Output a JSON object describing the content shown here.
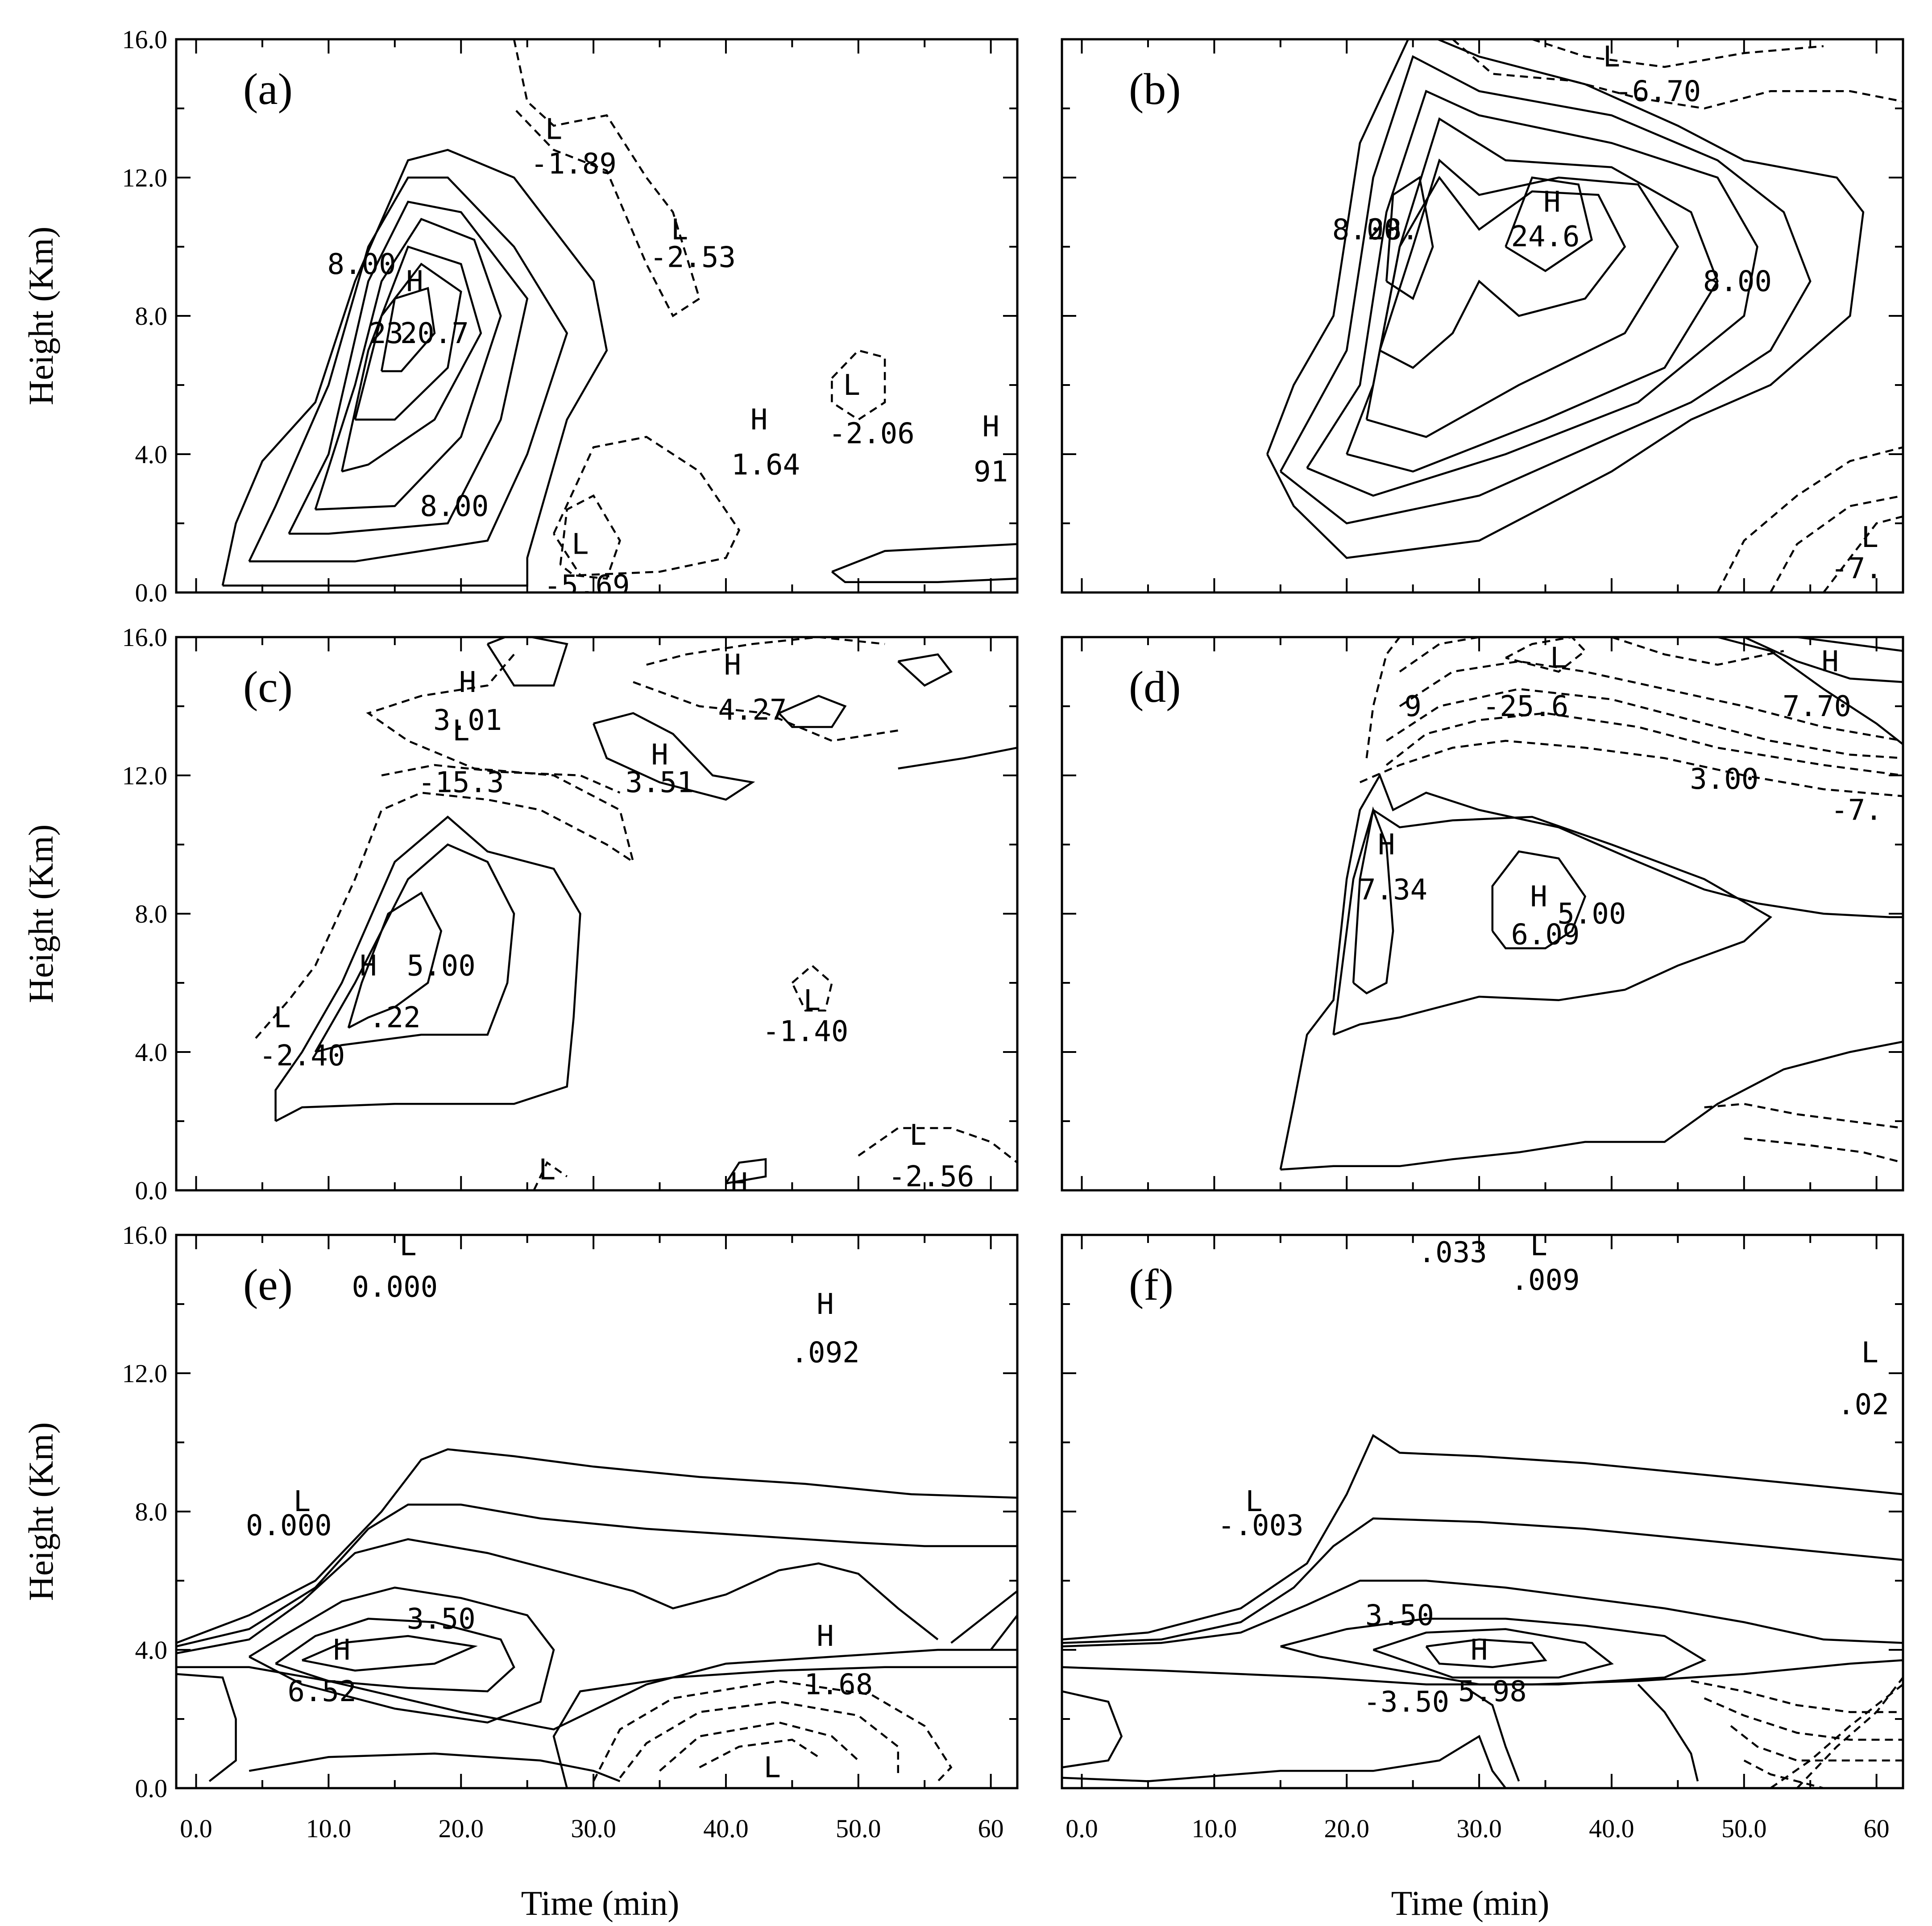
{
  "figure": {
    "x_tick_labels": [
      "0.0",
      "10.0",
      "20.0",
      "30.0",
      "40.0",
      "50.0",
      "60"
    ],
    "y_tick_labels": [
      "0.0",
      "4.0",
      "8.0",
      "12.0",
      "16.0"
    ],
    "ylabel": "Height (Km)",
    "xlabel": "Time (min)"
  },
  "chart_data": [
    {
      "type": "contour",
      "panel": "(a)",
      "xlim": [
        0,
        60
      ],
      "ylim": [
        0,
        16
      ],
      "xlabel": "",
      "ylabel": "Height (Km)",
      "extrema": [
        {
          "kind": "H",
          "x": 16.5,
          "y": 9.0
        },
        {
          "kind": "L",
          "x": 27.0,
          "y": 13.4
        },
        {
          "kind": "L",
          "x": 36.5,
          "y": 10.5
        },
        {
          "kind": "H",
          "x": 42.5,
          "y": 5.0
        },
        {
          "kind": "L",
          "x": 49.5,
          "y": 6.0
        },
        {
          "kind": "H",
          "x": 60.0,
          "y": 4.8
        },
        {
          "kind": "L",
          "x": 29.0,
          "y": 1.4
        }
      ],
      "contour_labels": [
        {
          "text": "8.00",
          "x": 12.5,
          "y": 9.5
        },
        {
          "text": "23.",
          "x": 15.0,
          "y": 7.5
        },
        {
          "text": "20.7",
          "x": 18.0,
          "y": 7.5
        },
        {
          "text": "-1.89",
          "x": 28.5,
          "y": 12.4
        },
        {
          "text": "-2.53",
          "x": 37.5,
          "y": 9.7
        },
        {
          "text": "8.00",
          "x": 19.5,
          "y": 2.5
        },
        {
          "text": "1.64",
          "x": 43.0,
          "y": 3.7
        },
        {
          "text": "-2.06",
          "x": 51.0,
          "y": 4.6
        },
        {
          "text": "91",
          "x": 60.0,
          "y": 3.5
        },
        {
          "text": "-5.69",
          "x": 29.5,
          "y": 0.2
        }
      ]
    },
    {
      "type": "contour",
      "panel": "(b)",
      "xlim": [
        0,
        60
      ],
      "ylim": [
        0,
        16
      ],
      "xlabel": "",
      "ylabel": "",
      "extrema": [
        {
          "kind": "L",
          "x": 40.0,
          "y": 15.5
        },
        {
          "kind": "H",
          "x": 35.5,
          "y": 11.3
        },
        {
          "kind": "L",
          "x": 59.5,
          "y": 1.6
        }
      ],
      "contour_labels": [
        {
          "text": "-6.70",
          "x": 43.5,
          "y": 14.5
        },
        {
          "text": "8.00",
          "x": 21.5,
          "y": 10.5
        },
        {
          "text": "28.",
          "x": 23.5,
          "y": 10.5
        },
        {
          "text": "24.6",
          "x": 35.0,
          "y": 10.3
        },
        {
          "text": "8.00",
          "x": 49.5,
          "y": 9.0
        },
        {
          "text": "-7.",
          "x": 58.5,
          "y": 0.7
        }
      ]
    },
    {
      "type": "contour",
      "panel": "(c)",
      "xlim": [
        0,
        60
      ],
      "ylim": [
        0,
        16
      ],
      "xlabel": "",
      "ylabel": "Height (Km)",
      "extrema": [
        {
          "kind": "H",
          "x": 20.5,
          "y": 14.7
        },
        {
          "kind": "L",
          "x": 20.0,
          "y": 13.3
        },
        {
          "kind": "H",
          "x": 35.0,
          "y": 12.6
        },
        {
          "kind": "H",
          "x": 40.5,
          "y": 15.2
        },
        {
          "kind": "H",
          "x": 13.0,
          "y": 6.5
        },
        {
          "kind": "L",
          "x": 6.5,
          "y": 5.0
        },
        {
          "kind": "L",
          "x": 46.5,
          "y": 5.5
        },
        {
          "kind": "L",
          "x": 54.5,
          "y": 1.6
        },
        {
          "kind": "L",
          "x": 26.5,
          "y": 0.6
        },
        {
          "kind": "H",
          "x": 41.0,
          "y": 0.2
        }
      ],
      "contour_labels": [
        {
          "text": "3.01",
          "x": 20.5,
          "y": 13.6
        },
        {
          "text": "-15.3",
          "x": 20.0,
          "y": 11.8
        },
        {
          "text": "3.51",
          "x": 35.0,
          "y": 11.8
        },
        {
          "text": "4.27",
          "x": 42.0,
          "y": 13.9
        },
        {
          "text": "5.00",
          "x": 18.5,
          "y": 6.5
        },
        {
          "text": ".22",
          "x": 15.0,
          "y": 5.0
        },
        {
          "text": "-2.40",
          "x": 8.0,
          "y": 3.9
        },
        {
          "text": "-1.40",
          "x": 46.0,
          "y": 4.6
        },
        {
          "text": "-2.56",
          "x": 55.5,
          "y": 0.4
        }
      ]
    },
    {
      "type": "contour",
      "panel": "(d)",
      "xlim": [
        0,
        60
      ],
      "ylim": [
        0,
        16
      ],
      "xlabel": "",
      "ylabel": "",
      "extrema": [
        {
          "kind": "L",
          "x": 36.0,
          "y": 15.4
        },
        {
          "kind": "H",
          "x": 56.5,
          "y": 15.3
        },
        {
          "kind": "H",
          "x": 23.0,
          "y": 10.0
        },
        {
          "kind": "H",
          "x": 34.5,
          "y": 8.5
        }
      ],
      "contour_labels": [
        {
          "text": "9",
          "x": 25.0,
          "y": 14.0
        },
        {
          "text": "-25.6",
          "x": 33.5,
          "y": 14.0
        },
        {
          "text": "7.70",
          "x": 55.5,
          "y": 14.0
        },
        {
          "text": "3.00",
          "x": 48.5,
          "y": 11.9
        },
        {
          "text": "-7.",
          "x": 58.5,
          "y": 11.0
        },
        {
          "text": "7.34",
          "x": 23.5,
          "y": 8.7
        },
        {
          "text": "6.09",
          "x": 35.0,
          "y": 7.4
        },
        {
          "text": "5.00",
          "x": 38.5,
          "y": 8.0
        }
      ]
    },
    {
      "type": "contour",
      "panel": "(e)",
      "xlim": [
        0,
        60
      ],
      "ylim": [
        0,
        16
      ],
      "xlabel": "Time (min)",
      "ylabel": "Height (Km)",
      "extrema": [
        {
          "kind": "L",
          "x": 16.0,
          "y": 15.7
        },
        {
          "kind": "H",
          "x": 47.5,
          "y": 14.0
        },
        {
          "kind": "L",
          "x": 8.0,
          "y": 8.3
        },
        {
          "kind": "H",
          "x": 11.0,
          "y": 4.0
        },
        {
          "kind": "H",
          "x": 47.5,
          "y": 4.4
        },
        {
          "kind": "L",
          "x": 43.5,
          "y": 0.6
        }
      ],
      "contour_labels": [
        {
          "text": "0.000",
          "x": 15.0,
          "y": 14.5
        },
        {
          "text": ".092",
          "x": 47.5,
          "y": 12.6
        },
        {
          "text": "0.000",
          "x": 7.0,
          "y": 7.6
        },
        {
          "text": "3.50",
          "x": 18.5,
          "y": 4.9
        },
        {
          "text": "6.52",
          "x": 9.5,
          "y": 2.8
        },
        {
          "text": "1.68",
          "x": 48.5,
          "y": 3.0
        }
      ]
    },
    {
      "type": "contour",
      "panel": "(f)",
      "xlim": [
        0,
        60
      ],
      "ylim": [
        0,
        16
      ],
      "xlabel": "Time (min)",
      "ylabel": "",
      "extrema": [
        {
          "kind": "H",
          "x": 28.0,
          "y": 16.6
        },
        {
          "kind": "L",
          "x": 34.5,
          "y": 15.7
        },
        {
          "kind": "L",
          "x": 59.5,
          "y": 12.6
        },
        {
          "kind": "L",
          "x": 13.0,
          "y": 8.3
        },
        {
          "kind": "H",
          "x": 30.0,
          "y": 4.0
        }
      ],
      "contour_labels": [
        {
          "text": ".033",
          "x": 28.0,
          "y": 15.5
        },
        {
          "text": ".009",
          "x": 35.0,
          "y": 14.7
        },
        {
          "text": ".02",
          "x": 59.0,
          "y": 11.1
        },
        {
          "text": "-.003",
          "x": 13.5,
          "y": 7.6
        },
        {
          "text": "3.50",
          "x": 24.0,
          "y": 5.0
        },
        {
          "text": "5.98",
          "x": 31.0,
          "y": 2.8
        },
        {
          "text": "-3.50",
          "x": 24.5,
          "y": 2.5
        }
      ]
    }
  ]
}
